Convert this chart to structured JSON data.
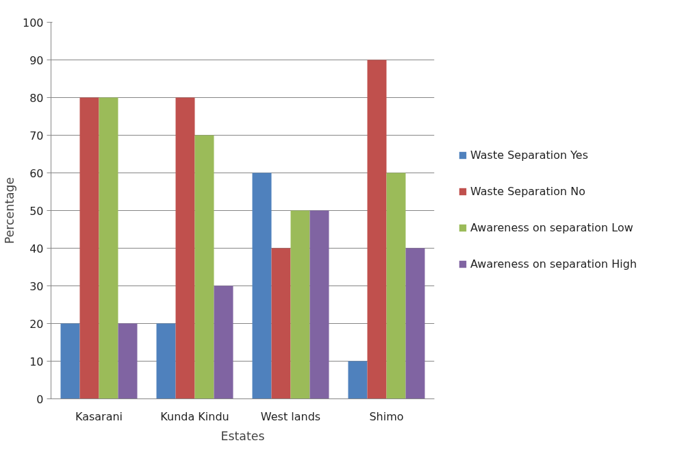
{
  "chart_data": {
    "type": "bar",
    "categories": [
      "Kasarani",
      "Kunda Kindu",
      "West lands",
      "Shimo"
    ],
    "series": [
      {
        "name": "Waste Separation Yes",
        "color": "#4f81bd",
        "values": [
          20,
          20,
          60,
          10
        ]
      },
      {
        "name": "Waste Separation No",
        "color": "#c0504d",
        "values": [
          80,
          80,
          40,
          90
        ]
      },
      {
        "name": "Awareness on separation Low",
        "color": "#9bbb59",
        "values": [
          80,
          70,
          50,
          60
        ]
      },
      {
        "name": "Awareness on separation High",
        "color": "#8064a2",
        "values": [
          20,
          30,
          50,
          40
        ]
      }
    ],
    "xlabel": "Estates",
    "ylabel": "Percentage",
    "ylim": [
      0,
      100
    ],
    "yticks": [
      0,
      10,
      20,
      30,
      40,
      50,
      60,
      70,
      80,
      90,
      100
    ],
    "grid": "y",
    "legend": "right"
  }
}
